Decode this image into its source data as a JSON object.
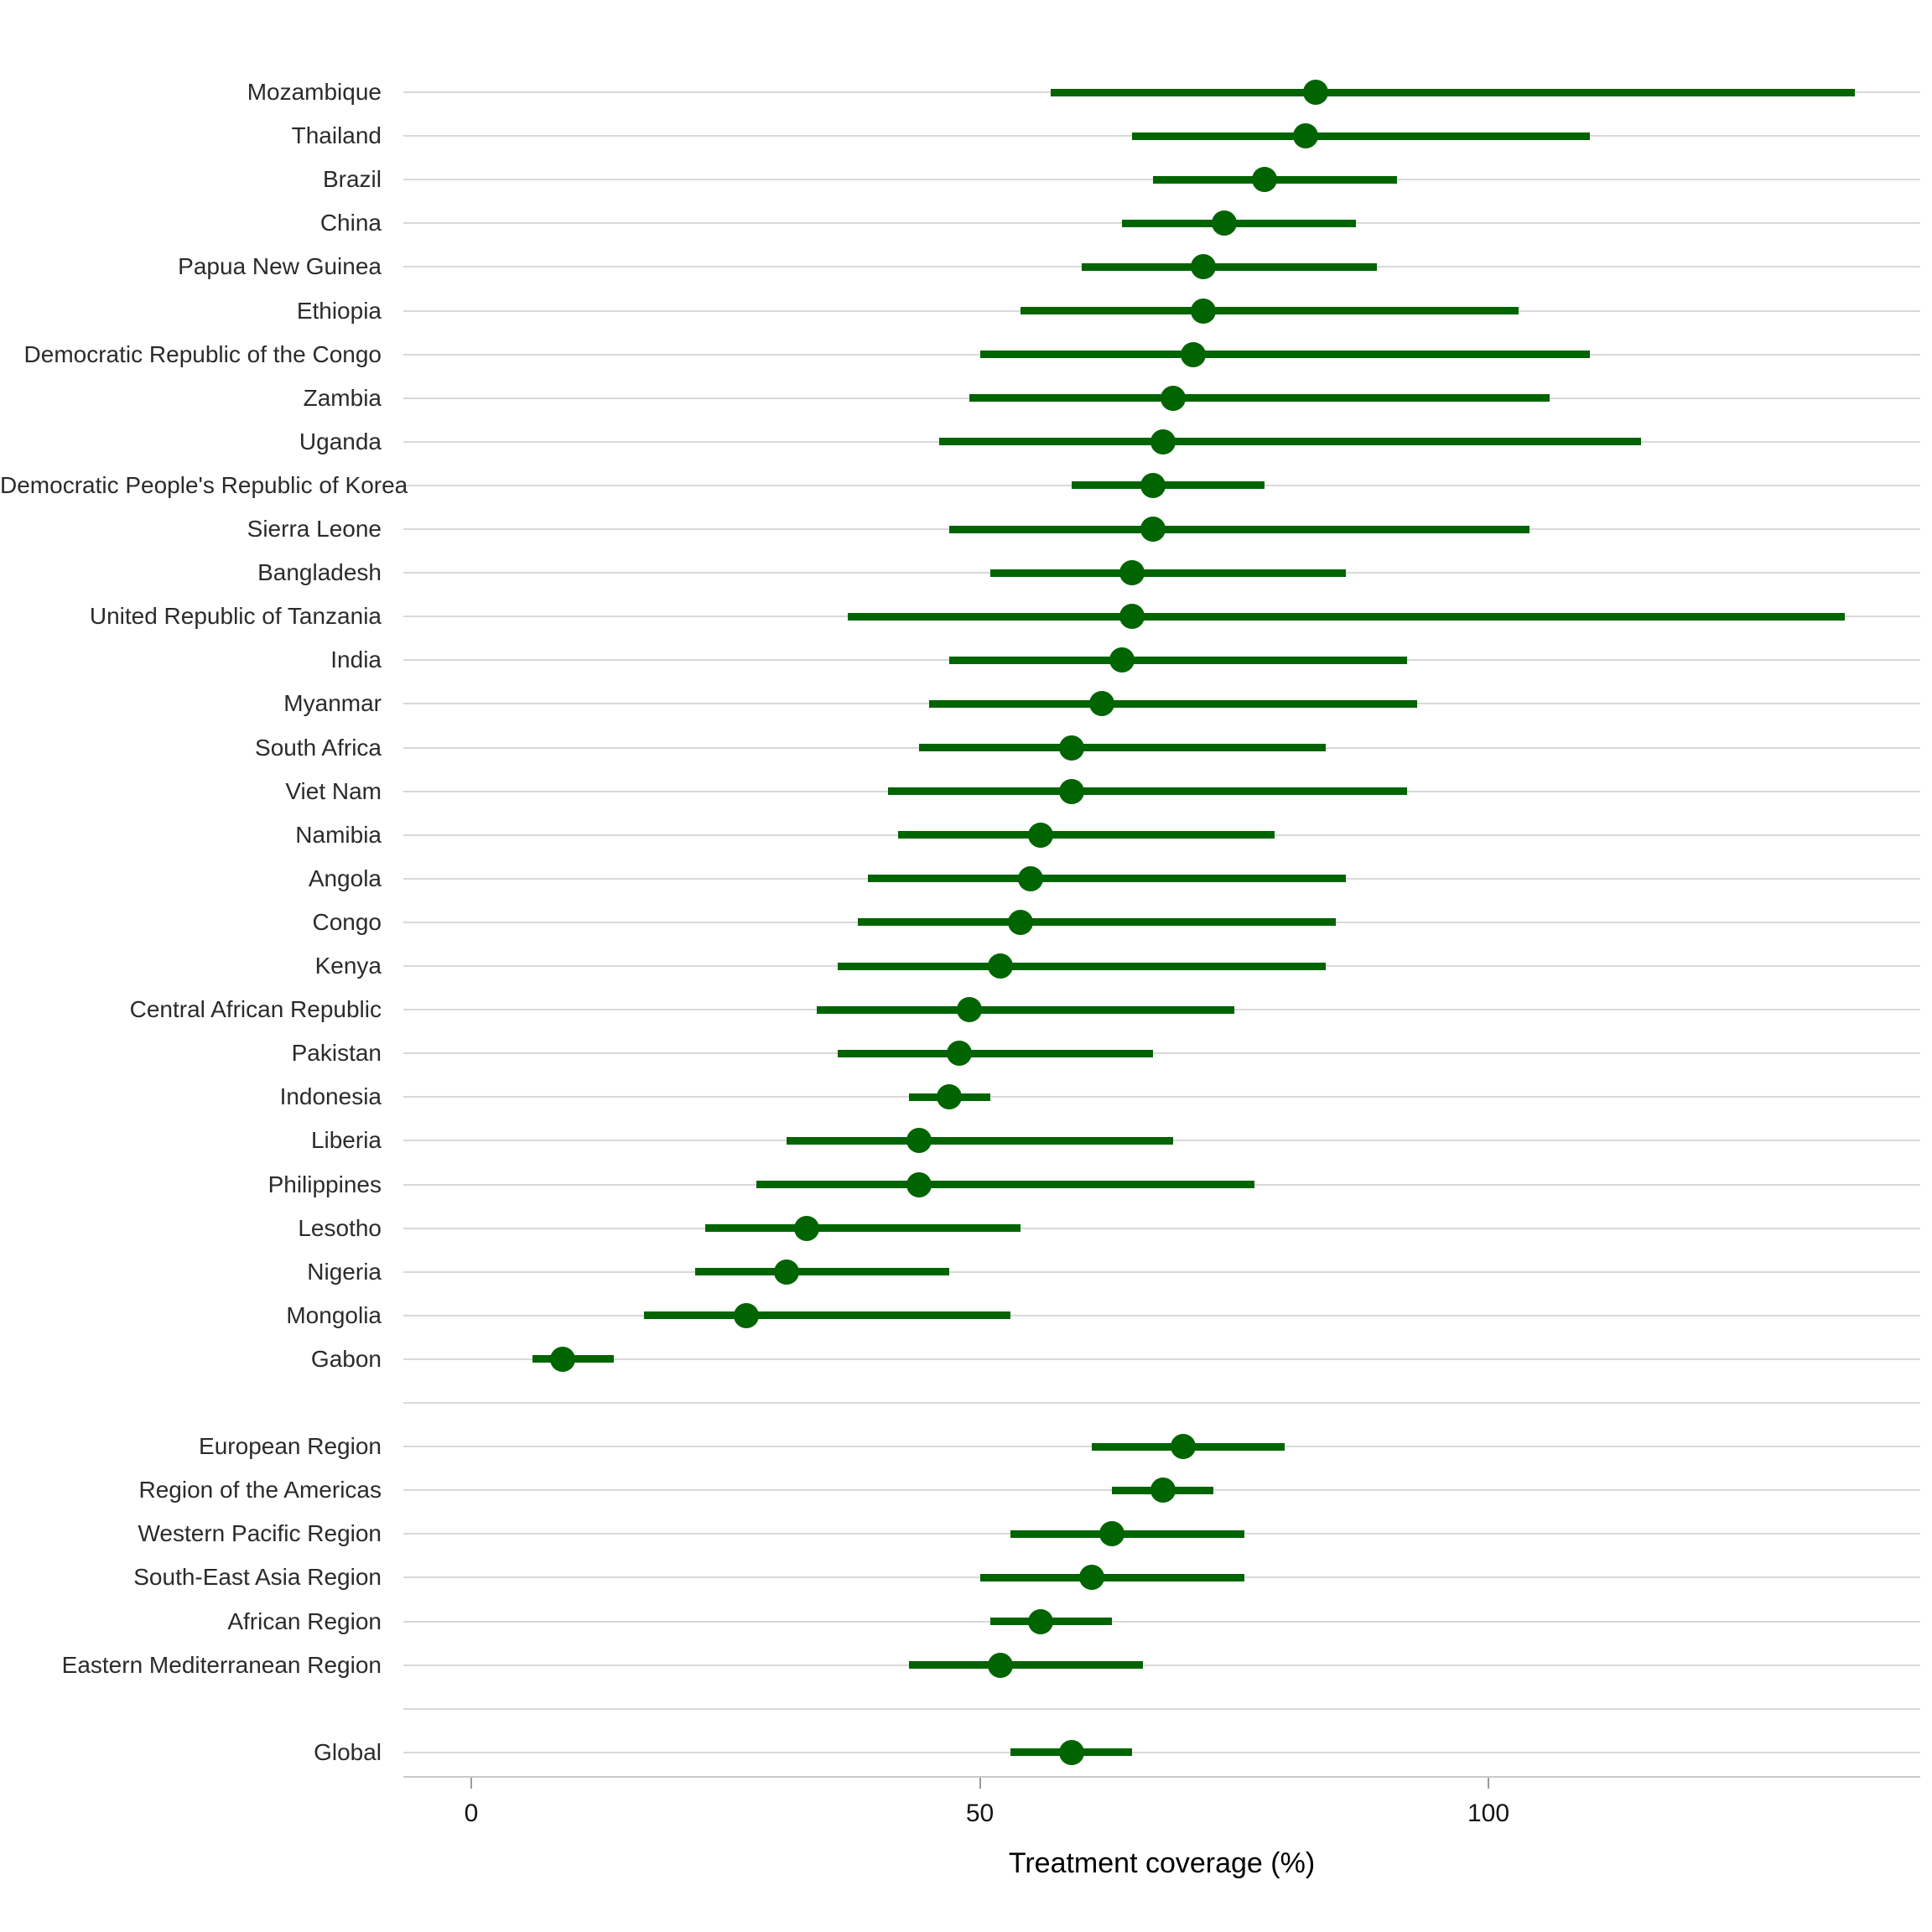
{
  "chart_data": {
    "type": "scatter",
    "subtype": "dot-and-interval (forest plot)",
    "title": "",
    "xlabel": "Treatment coverage (%)",
    "ylabel": "",
    "x_ticks": [
      0,
      50,
      100
    ],
    "xlim": [
      -7,
      142.5
    ],
    "grid": "horizontal light-gray line per category",
    "legend": "none",
    "point_color": "#006400",
    "interval_color": "#006400",
    "gridline_color": "#d9d9d9",
    "axis_line_color": "#c9c9c9",
    "sections": [
      {
        "name": "countries",
        "items": [
          {
            "label": "Mozambique",
            "value": 83,
            "lo": 57,
            "hi": 136
          },
          {
            "label": "Thailand",
            "value": 82,
            "lo": 65,
            "hi": 110
          },
          {
            "label": "Brazil",
            "value": 78,
            "lo": 67,
            "hi": 91
          },
          {
            "label": "China",
            "value": 74,
            "lo": 64,
            "hi": 87
          },
          {
            "label": "Papua New Guinea",
            "value": 72,
            "lo": 60,
            "hi": 89
          },
          {
            "label": "Ethiopia",
            "value": 72,
            "lo": 54,
            "hi": 103
          },
          {
            "label": "Democratic Republic of the Congo",
            "value": 71,
            "lo": 50,
            "hi": 110
          },
          {
            "label": "Zambia",
            "value": 69,
            "lo": 49,
            "hi": 106
          },
          {
            "label": "Uganda",
            "value": 68,
            "lo": 46,
            "hi": 115
          },
          {
            "label": "Democratic People's Republic of Korea",
            "value": 67,
            "lo": 59,
            "hi": 78
          },
          {
            "label": "Sierra Leone",
            "value": 67,
            "lo": 47,
            "hi": 104
          },
          {
            "label": "Bangladesh",
            "value": 65,
            "lo": 51,
            "hi": 86
          },
          {
            "label": "United Republic of Tanzania",
            "value": 65,
            "lo": 37,
            "hi": 135
          },
          {
            "label": "India",
            "value": 64,
            "lo": 47,
            "hi": 92
          },
          {
            "label": "Myanmar",
            "value": 62,
            "lo": 45,
            "hi": 93
          },
          {
            "label": "South Africa",
            "value": 59,
            "lo": 44,
            "hi": 84
          },
          {
            "label": "Viet Nam",
            "value": 59,
            "lo": 41,
            "hi": 92
          },
          {
            "label": "Namibia",
            "value": 56,
            "lo": 42,
            "hi": 79
          },
          {
            "label": "Angola",
            "value": 55,
            "lo": 39,
            "hi": 86
          },
          {
            "label": "Congo",
            "value": 54,
            "lo": 38,
            "hi": 85
          },
          {
            "label": "Kenya",
            "value": 52,
            "lo": 36,
            "hi": 84
          },
          {
            "label": "Central African Republic",
            "value": 49,
            "lo": 34,
            "hi": 75
          },
          {
            "label": "Pakistan",
            "value": 48,
            "lo": 36,
            "hi": 67
          },
          {
            "label": "Indonesia",
            "value": 47,
            "lo": 43,
            "hi": 51
          },
          {
            "label": "Liberia",
            "value": 44,
            "lo": 31,
            "hi": 69
          },
          {
            "label": "Philippines",
            "value": 44,
            "lo": 28,
            "hi": 77
          },
          {
            "label": "Lesotho",
            "value": 33,
            "lo": 23,
            "hi": 54
          },
          {
            "label": "Nigeria",
            "value": 31,
            "lo": 22,
            "hi": 47
          },
          {
            "label": "Mongolia",
            "value": 27,
            "lo": 17,
            "hi": 53
          },
          {
            "label": "Gabon",
            "value": 9,
            "lo": 6,
            "hi": 14
          }
        ]
      },
      {
        "name": "who_regions",
        "items": [
          {
            "label": "European Region",
            "value": 70,
            "lo": 61,
            "hi": 80
          },
          {
            "label": "Region of the Americas",
            "value": 68,
            "lo": 63,
            "hi": 73
          },
          {
            "label": "Western Pacific Region",
            "value": 63,
            "lo": 53,
            "hi": 76
          },
          {
            "label": "South-East Asia Region",
            "value": 61,
            "lo": 50,
            "hi": 76
          },
          {
            "label": "African Region",
            "value": 56,
            "lo": 51,
            "hi": 63
          },
          {
            "label": "Eastern Mediterranean Region",
            "value": 52,
            "lo": 43,
            "hi": 66
          }
        ]
      },
      {
        "name": "global",
        "items": [
          {
            "label": "Global",
            "value": 59,
            "lo": 53,
            "hi": 65
          }
        ]
      }
    ]
  }
}
